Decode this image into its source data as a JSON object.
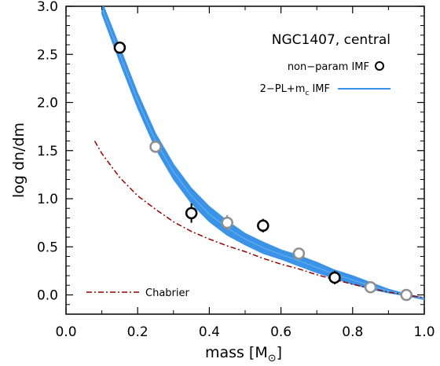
{
  "chart_data": {
    "type": "scatter",
    "xlabel": "mass [M",
    "xlabel_sub": "⊙",
    "xlabel_end": "]",
    "ylabel": "log dn/dm",
    "xlim": [
      0.0,
      1.0
    ],
    "ylim": [
      -0.2,
      3.0
    ],
    "x_ticks": [
      "0.0",
      "0.2",
      "0.4",
      "0.6",
      "0.8",
      "1.0"
    ],
    "y_ticks": [
      "0.0",
      "0.5",
      "1.0",
      "1.5",
      "2.0",
      "2.5",
      "3.0"
    ],
    "legend_placement": "top-right",
    "annotation": "NGC1407, central",
    "legend": {
      "nonparam_label": "non−param IMF",
      "pl_label_main": "2−PL+m",
      "pl_label_sub": "c",
      "pl_label_end": " IMF",
      "chabrier_label": "Chabrier"
    },
    "colors": {
      "band": "#3a93e6",
      "chabrier": "#990000",
      "open_black": "#000000",
      "open_gray": "#8f8f8f"
    },
    "series": [
      {
        "name": "non−param IMF",
        "marker": "open-circle-black",
        "points": [
          {
            "x": 0.15,
            "y": 2.57,
            "err": 0.03
          },
          {
            "x": 0.35,
            "y": 0.85,
            "err": 0.1
          },
          {
            "x": 0.55,
            "y": 0.72,
            "err": 0.07
          },
          {
            "x": 0.75,
            "y": 0.18,
            "err": 0.07
          }
        ]
      },
      {
        "marker": "open-circle-gray",
        "points": [
          {
            "x": 0.25,
            "y": 1.54,
            "err": 0.06
          },
          {
            "x": 0.45,
            "y": 0.75,
            "err": 0.08
          },
          {
            "x": 0.65,
            "y": 0.43,
            "err": 0.04
          },
          {
            "x": 0.85,
            "y": 0.08,
            "err": 0.02
          },
          {
            "x": 0.95,
            "y": 0.0,
            "err": 0.0
          }
        ]
      },
      {
        "name": "2−PL+m_c IMF",
        "style": "band",
        "upper": [
          [
            0.1,
            3.05
          ],
          [
            0.15,
            2.58
          ],
          [
            0.2,
            2.1
          ],
          [
            0.25,
            1.68
          ],
          [
            0.3,
            1.36
          ],
          [
            0.35,
            1.11
          ],
          [
            0.4,
            0.92
          ],
          [
            0.45,
            0.77
          ],
          [
            0.5,
            0.64
          ],
          [
            0.55,
            0.55
          ],
          [
            0.6,
            0.47
          ],
          [
            0.65,
            0.41
          ],
          [
            0.7,
            0.34
          ],
          [
            0.75,
            0.26
          ],
          [
            0.8,
            0.2
          ],
          [
            0.85,
            0.13
          ],
          [
            0.9,
            0.06
          ],
          [
            0.95,
            0.01
          ],
          [
            1.0,
            -0.03
          ]
        ],
        "lower": [
          [
            0.1,
            2.92
          ],
          [
            0.15,
            2.42
          ],
          [
            0.2,
            1.94
          ],
          [
            0.25,
            1.52
          ],
          [
            0.3,
            1.2
          ],
          [
            0.35,
            0.95
          ],
          [
            0.4,
            0.76
          ],
          [
            0.45,
            0.62
          ],
          [
            0.5,
            0.52
          ],
          [
            0.55,
            0.43
          ],
          [
            0.6,
            0.37
          ],
          [
            0.65,
            0.3
          ],
          [
            0.7,
            0.23
          ],
          [
            0.75,
            0.17
          ],
          [
            0.8,
            0.11
          ],
          [
            0.85,
            0.06
          ],
          [
            0.9,
            0.02
          ],
          [
            0.95,
            -0.01
          ],
          [
            1.0,
            -0.05
          ]
        ]
      },
      {
        "name": "Chabrier",
        "style": "dash-dot",
        "points": [
          [
            0.08,
            1.6
          ],
          [
            0.1,
            1.47
          ],
          [
            0.15,
            1.22
          ],
          [
            0.2,
            1.03
          ],
          [
            0.25,
            0.89
          ],
          [
            0.3,
            0.76
          ],
          [
            0.35,
            0.66
          ],
          [
            0.4,
            0.58
          ],
          [
            0.45,
            0.51
          ],
          [
            0.5,
            0.45
          ],
          [
            0.55,
            0.38
          ],
          [
            0.6,
            0.32
          ],
          [
            0.65,
            0.27
          ],
          [
            0.7,
            0.21
          ],
          [
            0.75,
            0.16
          ],
          [
            0.8,
            0.11
          ],
          [
            0.85,
            0.07
          ],
          [
            0.9,
            0.03
          ],
          [
            0.95,
            0.0
          ],
          [
            1.0,
            -0.03
          ]
        ]
      }
    ]
  }
}
